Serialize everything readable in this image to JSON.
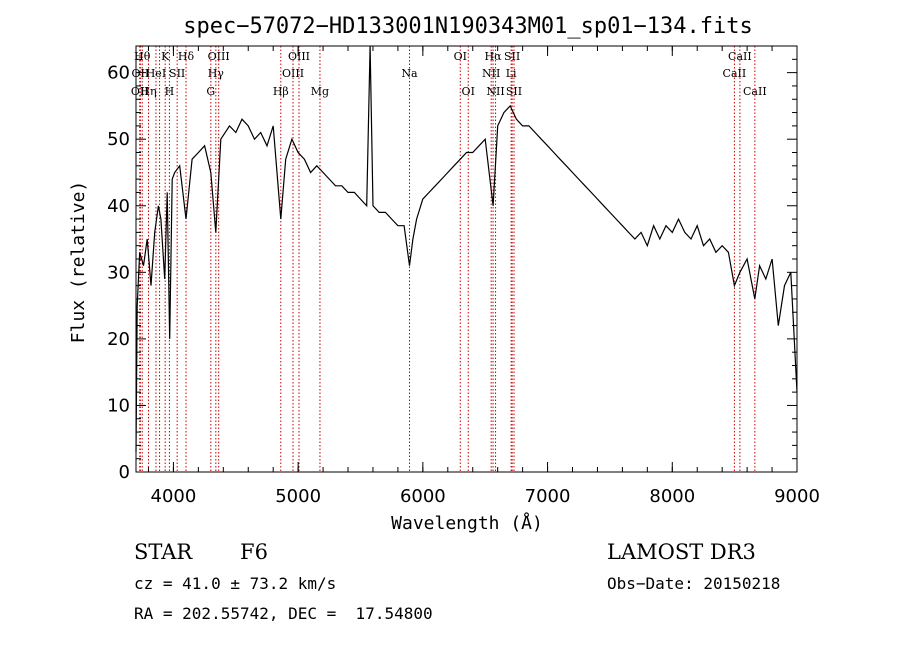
{
  "chart_data": {
    "type": "line",
    "title": "spec−57072−HD133001N190343M01_sp01−134.fits",
    "xlabel": "Wavelength (Å)",
    "ylabel": "Flux (relative)",
    "xlim": [
      3700,
      9000
    ],
    "ylim": [
      0,
      64
    ],
    "x_ticks": [
      {
        "value": 4000,
        "label": "4000"
      },
      {
        "value": 5000,
        "label": "5000"
      },
      {
        "value": 6000,
        "label": "6000"
      },
      {
        "value": 7000,
        "label": "7000"
      },
      {
        "value": 8000,
        "label": "8000"
      },
      {
        "value": 9000,
        "label": "9000"
      }
    ],
    "y_ticks": [
      {
        "value": 0,
        "label": "0"
      },
      {
        "value": 10,
        "label": "10"
      },
      {
        "value": 20,
        "label": "20"
      },
      {
        "value": 30,
        "label": "30"
      },
      {
        "value": 40,
        "label": "40"
      },
      {
        "value": 50,
        "label": "50"
      },
      {
        "value": 60,
        "label": "60"
      }
    ],
    "line_color": "#000000",
    "marker_color": "#cc0000",
    "series": [
      {
        "x": [
          3700,
          3710,
          3730,
          3760,
          3790,
          3820,
          3850,
          3880,
          3900,
          3930,
          3950,
          3970,
          3990,
          4010,
          4050,
          4101,
          4150,
          4200,
          4250,
          4300,
          4340,
          4380,
          4450,
          4500,
          4550,
          4600,
          4650,
          4700,
          4750,
          4800,
          4861,
          4900,
          4950,
          5000,
          5050,
          5100,
          5150,
          5200,
          5250,
          5300,
          5350,
          5400,
          5450,
          5500,
          5550,
          5577,
          5600,
          5650,
          5700,
          5750,
          5800,
          5850,
          5893,
          5920,
          5950,
          6000,
          6050,
          6100,
          6150,
          6200,
          6250,
          6300,
          6350,
          6400,
          6450,
          6500,
          6563,
          6600,
          6650,
          6700,
          6750,
          6800,
          6850,
          6900,
          6950,
          7000,
          7050,
          7100,
          7150,
          7200,
          7250,
          7300,
          7350,
          7400,
          7450,
          7500,
          7550,
          7600,
          7650,
          7700,
          7750,
          7800,
          7850,
          7900,
          7950,
          8000,
          8050,
          8100,
          8150,
          8200,
          8250,
          8300,
          8350,
          8400,
          8450,
          8498,
          8542,
          8600,
          8662,
          8700,
          8750,
          8800,
          8850,
          8900,
          8950,
          9000
        ],
        "y": [
          3,
          25,
          33,
          31,
          35,
          28,
          36,
          40,
          38,
          29,
          42,
          20,
          44,
          45,
          46,
          38,
          47,
          48,
          49,
          45,
          36,
          50,
          52,
          51,
          53,
          52,
          50,
          51,
          49,
          52,
          38,
          47,
          50,
          48,
          47,
          45,
          46,
          45,
          44,
          43,
          43,
          42,
          42,
          41,
          40,
          64,
          40,
          39,
          39,
          38,
          37,
          37,
          31,
          35,
          38,
          41,
          42,
          43,
          44,
          45,
          46,
          47,
          48,
          48,
          49,
          50,
          40,
          52,
          54,
          55,
          53,
          52,
          52,
          51,
          50,
          49,
          48,
          47,
          46,
          45,
          44,
          43,
          42,
          41,
          40,
          39,
          38,
          37,
          36,
          35,
          36,
          34,
          37,
          35,
          37,
          36,
          38,
          36,
          35,
          37,
          34,
          35,
          33,
          34,
          33,
          28,
          30,
          32,
          26,
          31,
          29,
          32,
          22,
          28,
          30,
          12
        ]
      }
    ],
    "line_markers": [
      {
        "x": 3750,
        "label": "Hθ",
        "row": 0
      },
      {
        "x": 3735,
        "label": "OII",
        "row": 1
      },
      {
        "x": 3730,
        "label": "OII",
        "row": 2
      },
      {
        "x": 3800,
        "label": "Hη",
        "row": 2
      },
      {
        "x": 3860,
        "label": "HeI",
        "row": 1
      },
      {
        "x": 3889,
        "label": "",
        "row": -1
      },
      {
        "x": 3934,
        "label": "K",
        "row": 0
      },
      {
        "x": 3968,
        "label": "H",
        "row": 2
      },
      {
        "x": 4030,
        "label": "SII",
        "row": 1
      },
      {
        "x": 4101,
        "label": "Hδ",
        "row": 0
      },
      {
        "x": 4300,
        "label": "G",
        "row": 2
      },
      {
        "x": 4340,
        "label": "Hγ",
        "row": 1
      },
      {
        "x": 4363,
        "label": "OIII",
        "row": 0
      },
      {
        "x": 4861,
        "label": "Hβ",
        "row": 2
      },
      {
        "x": 4959,
        "label": "OIII",
        "row": 1
      },
      {
        "x": 5007,
        "label": "OIII",
        "row": 0
      },
      {
        "x": 5175,
        "label": "Mg",
        "row": 2
      },
      {
        "x": 5893,
        "label": "Na",
        "row": 1
      },
      {
        "x": 6300,
        "label": "OI",
        "row": 0
      },
      {
        "x": 6364,
        "label": "OI",
        "row": 2
      },
      {
        "x": 6548,
        "label": "NII",
        "row": 1
      },
      {
        "x": 6563,
        "label": "Hα",
        "row": 0
      },
      {
        "x": 6583,
        "label": "NII",
        "row": 2
      },
      {
        "x": 6708,
        "label": "Li",
        "row": 1
      },
      {
        "x": 6716,
        "label": "SII",
        "row": 0
      },
      {
        "x": 6731,
        "label": "SII",
        "row": 2
      },
      {
        "x": 8498,
        "label": "CaII",
        "row": 1
      },
      {
        "x": 8542,
        "label": "CaII",
        "row": 0
      },
      {
        "x": 8662,
        "label": "CaII",
        "row": 2
      }
    ]
  },
  "info": {
    "object_type": "STAR",
    "subclass": "F6",
    "survey": "LAMOST DR3",
    "cz": "cz = 41.0 ± 73.2 km/s",
    "obs_date": "Obs−Date: 20150218",
    "coords": "RA = 202.55742, DEC =  17.54800"
  }
}
